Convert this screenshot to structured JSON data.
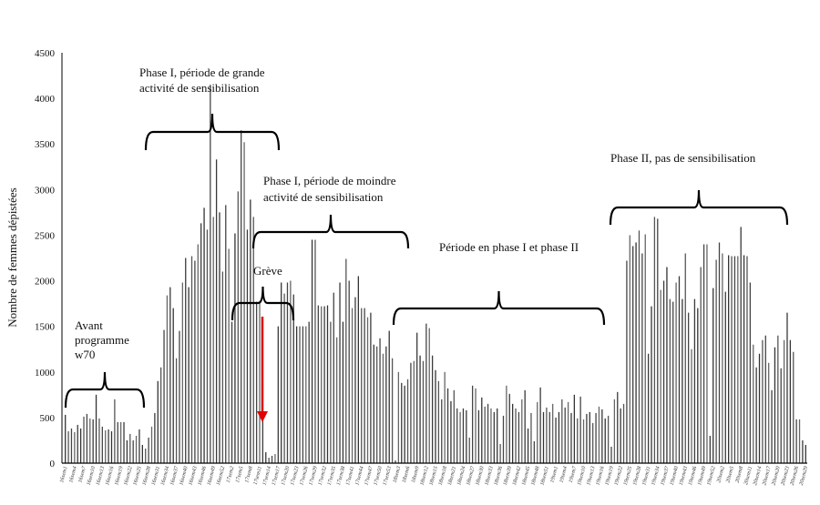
{
  "chart_data": {
    "type": "bar",
    "title": "",
    "xlabel": "",
    "ylabel": "Nombre de femmes dépistées",
    "ylim": [
      0,
      4500
    ],
    "yticks": [
      0,
      500,
      1000,
      1500,
      2000,
      2500,
      3000,
      3500,
      4000,
      4500
    ],
    "grid": false,
    "bar_color": "#444444",
    "x_tick_labels": [
      "16sem1",
      "16sem4",
      "16sem7",
      "16sem10",
      "16sem13",
      "16sem16",
      "16sem19",
      "16sem22",
      "16sem25",
      "16sem28",
      "16sem31",
      "16sem34",
      "16sem37",
      "16sem40",
      "16sem43",
      "16sem46",
      "16sem49",
      "16sem52",
      "17sem2",
      "17sem5",
      "17sem8",
      "17sem11",
      "17sem14",
      "17sem17",
      "17sem20",
      "17sem23",
      "17sem26",
      "17sem29",
      "17sem32",
      "17sem35",
      "17sem38",
      "17sem41",
      "17sem44",
      "17sem47",
      "17sem50",
      "17sem53",
      "18sem3",
      "18sem6",
      "18sem9",
      "18sem12",
      "18sem15",
      "18sem18",
      "18sem21",
      "18sem24",
      "18sem27",
      "18sem30",
      "18sem33",
      "18sem36",
      "18sem39",
      "18sem42",
      "18sem45",
      "18sem48",
      "18sem51",
      "19sem1",
      "19sem4",
      "19sem7",
      "19sem10",
      "19sem13",
      "19sem16",
      "19sem19",
      "19sem22",
      "19sem25",
      "19sem28",
      "19sem31",
      "19sem34",
      "19sem37",
      "19sem40",
      "19sem43",
      "19sem46",
      "19sem49",
      "19sem52",
      "20sem2",
      "20sem5",
      "20sem8",
      "20sem11",
      "20sem14",
      "20sem17",
      "20sem20",
      "20sem23",
      "20sem26",
      "20sem29"
    ],
    "values": [
      530,
      350,
      380,
      340,
      420,
      380,
      510,
      540,
      490,
      480,
      750,
      490,
      400,
      360,
      370,
      350,
      700,
      450,
      450,
      450,
      250,
      320,
      250,
      300,
      370,
      200,
      160,
      280,
      400,
      550,
      900,
      1050,
      1460,
      1840,
      1930,
      1700,
      1150,
      1450,
      1980,
      2250,
      1930,
      2270,
      2220,
      2400,
      2630,
      2800,
      2560,
      4150,
      2700,
      3330,
      2750,
      2100,
      2830,
      2350,
      1550,
      2520,
      2980,
      3650,
      3520,
      2560,
      2890,
      2700,
      1770,
      1780,
      880,
      120,
      60,
      80,
      100,
      1500,
      1980,
      1860,
      1980,
      2000,
      1850,
      1500,
      1500,
      1500,
      1500,
      1550,
      2450,
      2450,
      1730,
      1720,
      1720,
      1730,
      1550,
      1870,
      1380,
      1980,
      1550,
      2240,
      2000,
      1700,
      1820,
      2050,
      1700,
      1700,
      1600,
      1650,
      1300,
      1280,
      1370,
      1200,
      1280,
      1450,
      1150,
      30,
      1000,
      880,
      850,
      920,
      1100,
      1120,
      1430,
      1180,
      1120,
      1530,
      1480,
      1180,
      1020,
      900,
      700,
      1000,
      820,
      680,
      800,
      600,
      560,
      600,
      580,
      280,
      850,
      820,
      580,
      720,
      620,
      650,
      600,
      560,
      600,
      210,
      520,
      850,
      760,
      650,
      600,
      560,
      700,
      800,
      380,
      550,
      240,
      670,
      830,
      560,
      610,
      560,
      650,
      500,
      560,
      700,
      610,
      670,
      550,
      750,
      490,
      730,
      480,
      540,
      560,
      440,
      550,
      620,
      590,
      490,
      520,
      180,
      700,
      780,
      600,
      650,
      2220,
      2500,
      2380,
      2420,
      2550,
      2300,
      2510,
      1200,
      1720,
      2700,
      2680,
      1900,
      2000,
      2150,
      1800,
      1770,
      1980,
      2050,
      1800,
      2300,
      1650,
      1250,
      1800,
      1700,
      2150,
      2400,
      2400,
      300,
      1920,
      2230,
      2420,
      2300,
      1880,
      2280,
      2270,
      2270,
      2270,
      2590,
      2280,
      2270,
      1980,
      1300,
      1050,
      1200,
      1350,
      1400,
      1100,
      800,
      1270,
      1400,
      1040,
      1350,
      1650,
      1350,
      1220,
      480,
      480,
      250,
      200
    ],
    "annotations": {
      "avant": [
        "Avant",
        "programme",
        "w70"
      ],
      "phase1_grande": [
        "Phase I, période de grande",
        "activité de sensibilisation"
      ],
      "phase1_moindre": [
        "Phase I, période de moindre",
        "activité de sensibilisation"
      ],
      "greve": "Grève",
      "periode_mixte": "Période en phase I et phase II",
      "phase2": "Phase II, pas de sensibilisation"
    },
    "arrow_color": "#e00000"
  }
}
